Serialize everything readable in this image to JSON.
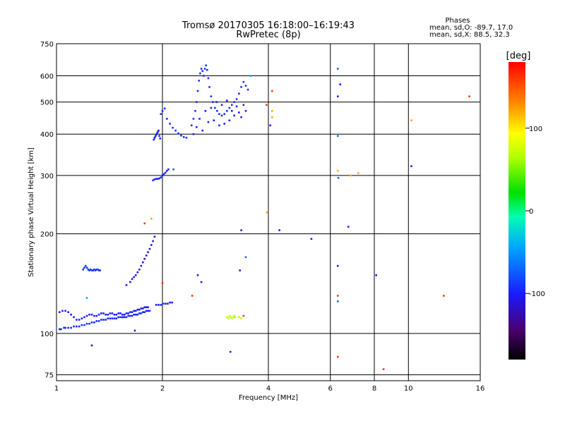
{
  "chart_data": {
    "type": "scatter",
    "title": "Tromsø 20170305 16:18:00–16:19:43",
    "subtitle": "RwPretec (8p)",
    "xlabel": "Frequency [MHz]",
    "ylabel": "Stationary phase Virtual Height [km]",
    "x_scale": "log2",
    "y_scale": "log",
    "xlim": [
      1,
      16
    ],
    "ylim": [
      72,
      750
    ],
    "x_ticks": [
      1,
      2,
      4,
      6,
      8,
      10,
      16
    ],
    "x_tick_labels": [
      "1",
      "2",
      "4",
      "6",
      "8",
      "10",
      "16"
    ],
    "y_ticks": [
      75,
      100,
      200,
      300,
      400,
      500,
      600,
      750
    ],
    "y_tick_labels": [
      "75",
      "100",
      "200",
      "300",
      "400",
      "500",
      "600",
      "750"
    ],
    "grid": true,
    "colorbar": {
      "label": "[deg]",
      "range": [
        -180,
        180
      ],
      "ticks": [
        100,
        0,
        -100
      ],
      "tick_labels": [
        "100",
        "0",
        "-100"
      ]
    },
    "stats": {
      "heading": "Phases",
      "line_o": "mean, sd,O: -89.7, 17.0",
      "line_x": "mean, sd,X: 88.5, 32.3"
    },
    "series": [
      {
        "phase": -95,
        "points": [
          [
            1.02,
            103
          ],
          [
            1.03,
            103
          ],
          [
            1.05,
            104
          ],
          [
            1.06,
            104
          ],
          [
            1.08,
            104
          ],
          [
            1.1,
            104
          ],
          [
            1.12,
            105
          ],
          [
            1.14,
            105
          ],
          [
            1.16,
            105
          ],
          [
            1.18,
            106
          ],
          [
            1.2,
            106
          ],
          [
            1.22,
            107
          ],
          [
            1.24,
            107
          ],
          [
            1.26,
            108
          ],
          [
            1.28,
            108
          ],
          [
            1.3,
            109
          ],
          [
            1.32,
            109
          ],
          [
            1.34,
            110
          ],
          [
            1.36,
            110
          ],
          [
            1.38,
            110
          ],
          [
            1.4,
            111
          ],
          [
            1.42,
            111
          ],
          [
            1.44,
            111
          ],
          [
            1.46,
            111
          ],
          [
            1.48,
            111
          ],
          [
            1.5,
            112
          ],
          [
            1.52,
            112
          ],
          [
            1.54,
            112
          ],
          [
            1.56,
            112
          ],
          [
            1.58,
            112
          ],
          [
            1.6,
            113
          ],
          [
            1.62,
            113
          ],
          [
            1.64,
            113
          ],
          [
            1.66,
            114
          ],
          [
            1.68,
            114
          ],
          [
            1.7,
            114
          ],
          [
            1.72,
            115
          ],
          [
            1.74,
            115
          ],
          [
            1.76,
            116
          ],
          [
            1.78,
            116
          ],
          [
            1.8,
            117
          ],
          [
            1.82,
            117
          ],
          [
            1.84,
            117
          ]
        ]
      },
      {
        "phase": -100,
        "points": [
          [
            1.02,
            116
          ],
          [
            1.04,
            117
          ],
          [
            1.06,
            117
          ],
          [
            1.08,
            116
          ],
          [
            1.1,
            114
          ],
          [
            1.12,
            112
          ],
          [
            1.14,
            110
          ],
          [
            1.16,
            110
          ],
          [
            1.18,
            111
          ],
          [
            1.2,
            112
          ],
          [
            1.22,
            113
          ],
          [
            1.24,
            114
          ],
          [
            1.26,
            114
          ],
          [
            1.28,
            113
          ],
          [
            1.3,
            113
          ],
          [
            1.32,
            114
          ],
          [
            1.34,
            115
          ],
          [
            1.36,
            115
          ],
          [
            1.38,
            114
          ],
          [
            1.4,
            114
          ],
          [
            1.42,
            115
          ],
          [
            1.44,
            115
          ],
          [
            1.46,
            114
          ],
          [
            1.48,
            114
          ],
          [
            1.5,
            115
          ],
          [
            1.52,
            115
          ],
          [
            1.54,
            114
          ],
          [
            1.56,
            114
          ],
          [
            1.58,
            115
          ],
          [
            1.6,
            115
          ],
          [
            1.62,
            116
          ],
          [
            1.64,
            116
          ],
          [
            1.66,
            117
          ],
          [
            1.68,
            117
          ],
          [
            1.7,
            118
          ],
          [
            1.72,
            118
          ],
          [
            1.74,
            119
          ],
          [
            1.76,
            119
          ],
          [
            1.78,
            120
          ],
          [
            1.8,
            120
          ],
          [
            1.82,
            120
          ]
        ]
      },
      {
        "phase": -90,
        "points": [
          [
            1.19,
            156
          ],
          [
            1.2,
            158
          ],
          [
            1.21,
            160
          ],
          [
            1.22,
            158
          ],
          [
            1.23,
            156
          ],
          [
            1.24,
            155
          ],
          [
            1.25,
            156
          ],
          [
            1.26,
            155
          ],
          [
            1.27,
            155
          ],
          [
            1.28,
            156
          ],
          [
            1.29,
            155
          ],
          [
            1.3,
            156
          ],
          [
            1.31,
            156
          ],
          [
            1.32,
            155
          ],
          [
            1.33,
            155
          ]
        ]
      },
      {
        "phase": -105,
        "points": [
          [
            1.58,
            140
          ],
          [
            1.62,
            143
          ],
          [
            1.64,
            146
          ],
          [
            1.66,
            148
          ],
          [
            1.68,
            150
          ],
          [
            1.7,
            153
          ],
          [
            1.72,
            156
          ],
          [
            1.74,
            160
          ],
          [
            1.76,
            164
          ],
          [
            1.78,
            168
          ],
          [
            1.8,
            172
          ],
          [
            1.82,
            176
          ],
          [
            1.84,
            180
          ],
          [
            1.86,
            185
          ],
          [
            1.88,
            190
          ],
          [
            1.9,
            196
          ]
        ]
      },
      {
        "phase": -100,
        "points": [
          [
            1.92,
            122
          ],
          [
            1.95,
            122
          ],
          [
            1.98,
            122
          ],
          [
            2.01,
            123
          ],
          [
            2.04,
            123
          ],
          [
            2.07,
            123
          ],
          [
            2.1,
            124
          ],
          [
            2.13,
            124
          ]
        ]
      },
      {
        "phase": -95,
        "points": [
          [
            1.88,
            290
          ],
          [
            1.9,
            292
          ],
          [
            1.92,
            293
          ],
          [
            1.94,
            293
          ],
          [
            1.96,
            294
          ],
          [
            1.98,
            296
          ],
          [
            2.0,
            300
          ],
          [
            2.02,
            303
          ],
          [
            2.04,
            306
          ],
          [
            2.06,
            310
          ],
          [
            2.08,
            313
          ]
        ]
      },
      {
        "phase": -100,
        "points": [
          [
            1.89,
            385
          ],
          [
            1.9,
            390
          ],
          [
            1.91,
            394
          ],
          [
            1.92,
            398
          ],
          [
            1.93,
            402
          ],
          [
            1.94,
            406
          ],
          [
            1.95,
            410
          ],
          [
            1.96,
            395
          ],
          [
            1.97,
            388
          ]
        ]
      },
      {
        "phase": -90,
        "points": [
          [
            1.98,
            460
          ],
          [
            2.0,
            470
          ],
          [
            2.03,
            478
          ],
          [
            2.06,
            445
          ],
          [
            2.1,
            430
          ],
          [
            2.14,
            418
          ],
          [
            2.18,
            410
          ],
          [
            2.22,
            402
          ],
          [
            2.26,
            396
          ],
          [
            2.3,
            392
          ],
          [
            2.34,
            390
          ]
        ]
      },
      {
        "phase": -92,
        "points": [
          [
            2.42,
            425
          ],
          [
            2.45,
            445
          ],
          [
            2.48,
            470
          ],
          [
            2.5,
            500
          ],
          [
            2.52,
            540
          ],
          [
            2.54,
            580
          ],
          [
            2.56,
            610
          ],
          [
            2.58,
            630
          ],
          [
            2.6,
            620
          ],
          [
            2.62,
            600
          ],
          [
            2.64,
            630
          ],
          [
            2.66,
            645
          ],
          [
            2.68,
            625
          ],
          [
            2.7,
            590
          ],
          [
            2.72,
            555
          ],
          [
            2.75,
            520
          ],
          [
            2.78,
            500
          ],
          [
            2.82,
            480
          ],
          [
            2.86,
            470
          ],
          [
            2.9,
            460
          ],
          [
            2.95,
            455
          ],
          [
            3.0,
            460
          ],
          [
            3.05,
            470
          ],
          [
            3.1,
            480
          ],
          [
            3.15,
            490
          ],
          [
            3.2,
            500
          ],
          [
            3.25,
            510
          ],
          [
            3.3,
            530
          ],
          [
            3.35,
            555
          ],
          [
            3.4,
            575
          ],
          [
            3.45,
            560
          ],
          [
            3.5,
            545
          ]
        ]
      },
      {
        "phase": -98,
        "points": [
          [
            2.45,
            400
          ],
          [
            2.5,
            420
          ],
          [
            2.55,
            445
          ],
          [
            2.6,
            410
          ],
          [
            2.65,
            470
          ],
          [
            2.7,
            435
          ],
          [
            2.75,
            480
          ],
          [
            2.8,
            440
          ],
          [
            2.85,
            500
          ],
          [
            2.9,
            425
          ],
          [
            2.95,
            490
          ],
          [
            3.0,
            430
          ],
          [
            3.05,
            505
          ],
          [
            3.1,
            440
          ],
          [
            3.15,
            470
          ],
          [
            3.2,
            455
          ],
          [
            3.25,
            485
          ],
          [
            3.3,
            465
          ],
          [
            3.35,
            450
          ],
          [
            3.4,
            490
          ],
          [
            3.45,
            470
          ]
        ]
      },
      {
        "phase": -108,
        "points": [
          [
            3.35,
            205
          ],
          [
            4.3,
            205
          ],
          [
            5.3,
            193
          ],
          [
            3.12,
            88
          ],
          [
            1.26,
            92
          ],
          [
            1.67,
            102
          ],
          [
            1.54,
            112
          ]
        ]
      },
      {
        "phase": -100,
        "points": [
          [
            2.52,
            150
          ],
          [
            2.58,
            143
          ],
          [
            3.32,
            155
          ],
          [
            6.3,
            160
          ],
          [
            8.1,
            150
          ],
          [
            6.75,
            210
          ],
          [
            10.2,
            320
          ],
          [
            6.3,
            520
          ],
          [
            6.4,
            565
          ],
          [
            4.05,
            425
          ]
        ]
      },
      {
        "phase": -70,
        "points": [
          [
            6.3,
            630
          ],
          [
            6.3,
            395
          ],
          [
            6.32,
            295
          ],
          [
            6.3,
            125
          ],
          [
            3.45,
            170
          ],
          [
            2.15,
            313
          ]
        ]
      },
      {
        "phase": -40,
        "points": [
          [
            3.56,
            600
          ],
          [
            1.22,
            128
          ]
        ]
      },
      {
        "phase": 70,
        "points": [
          [
            3.05,
            112
          ],
          [
            3.08,
            111
          ],
          [
            3.1,
            113
          ],
          [
            3.12,
            112
          ],
          [
            3.15,
            111
          ],
          [
            3.18,
            112
          ],
          [
            3.2,
            113
          ],
          [
            3.22,
            112
          ],
          [
            3.3,
            112
          ],
          [
            3.35,
            111
          ]
        ]
      },
      {
        "phase": 120,
        "points": [
          [
            4.1,
            470
          ],
          [
            4.1,
            450
          ],
          [
            6.3,
            310
          ],
          [
            7.2,
            305
          ],
          [
            10.2,
            440
          ],
          [
            3.96,
            232
          ],
          [
            1.86,
            222
          ],
          [
            6.85,
            300
          ]
        ]
      },
      {
        "phase": 160,
        "points": [
          [
            4.1,
            540
          ],
          [
            3.95,
            490
          ],
          [
            2.43,
            130
          ],
          [
            2.0,
            142
          ],
          [
            6.3,
            130
          ],
          [
            6.3,
            85
          ],
          [
            8.5,
            78
          ],
          [
            12.6,
            130
          ],
          [
            14.9,
            520
          ],
          [
            1.78,
            215
          ],
          [
            3.4,
            113
          ]
        ]
      }
    ]
  }
}
